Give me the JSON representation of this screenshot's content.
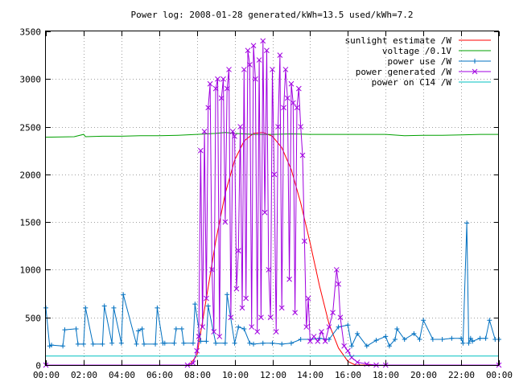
{
  "chart_data": {
    "type": "line",
    "title": "Power log: 2008-01-28 generated/kWh=13.5 used/kWh=7.2",
    "xlabel": "",
    "ylabel": "",
    "xlim": [
      0,
      24
    ],
    "ylim": [
      0,
      3500
    ],
    "grid": true,
    "legend_position": "top-right",
    "x_tick_values": [
      0,
      2,
      4,
      6,
      8,
      10,
      12,
      14,
      16,
      18,
      20,
      22,
      24
    ],
    "x_tick_labels": [
      "00:00",
      "02:00",
      "04:00",
      "06:00",
      "08:00",
      "10:00",
      "12:00",
      "14:00",
      "16:00",
      "18:00",
      "20:00",
      "22:00",
      "00:00"
    ],
    "y_tick_values": [
      0,
      500,
      1000,
      1500,
      2000,
      2500,
      3000,
      3500
    ],
    "y_tick_labels": [
      "0",
      "500",
      "1000",
      "1500",
      "2000",
      "2500",
      "3000",
      "3500"
    ],
    "series": [
      {
        "name": "sunlight estimate /W",
        "color": "#ff0000",
        "marker": "none",
        "x": [
          0,
          7.6,
          8.0,
          8.5,
          9.0,
          9.5,
          10.0,
          10.5,
          11.0,
          11.5,
          12.0,
          12.5,
          13.0,
          13.5,
          14.0,
          14.5,
          15.0,
          15.5,
          16.0,
          16.4,
          24
        ],
        "y": [
          0,
          0,
          100,
          700,
          1300,
          1800,
          2150,
          2350,
          2430,
          2440,
          2400,
          2280,
          2050,
          1700,
          1280,
          830,
          430,
          180,
          40,
          0,
          0
        ]
      },
      {
        "name": "voltage /0.1V",
        "color": "#00a000",
        "marker": "none",
        "x": [
          0,
          1.5,
          2.0,
          2.1,
          3.0,
          4.0,
          5.0,
          6.0,
          7.0,
          8.0,
          9.0,
          9.5,
          10.0,
          11.0,
          12.0,
          13.0,
          14.0,
          15.0,
          16.0,
          17.0,
          18.0,
          19.0,
          20.0,
          21.0,
          22.0,
          23.0,
          24.0
        ],
        "y": [
          2390,
          2395,
          2420,
          2395,
          2400,
          2400,
          2405,
          2405,
          2410,
          2420,
          2430,
          2440,
          2430,
          2420,
          2420,
          2425,
          2420,
          2420,
          2420,
          2420,
          2420,
          2405,
          2410,
          2410,
          2415,
          2420,
          2420
        ]
      },
      {
        "name": "power use /W",
        "color": "#0070c0",
        "marker": "plus",
        "x": [
          0,
          0.2,
          0.3,
          0.9,
          1.0,
          1.6,
          1.7,
          2.0,
          2.1,
          2.5,
          3.0,
          3.1,
          3.5,
          3.6,
          4.0,
          4.1,
          4.8,
          4.9,
          5.1,
          5.2,
          5.8,
          5.9,
          6.2,
          6.3,
          6.8,
          6.9,
          7.2,
          7.3,
          7.8,
          7.9,
          8.2,
          8.5,
          8.6,
          9.0,
          9.5,
          9.6,
          10.0,
          10.2,
          10.5,
          10.8,
          11.0,
          11.5,
          12.0,
          12.5,
          13.0,
          13.5,
          14.0,
          14.5,
          15.0,
          15.5,
          16.0,
          16.2,
          16.5,
          17.0,
          17.5,
          18.0,
          18.2,
          18.5,
          18.6,
          19.0,
          19.5,
          19.8,
          20.0,
          20.5,
          21.0,
          21.5,
          22.0,
          22.1,
          22.3,
          22.4,
          22.5,
          22.6,
          23.0,
          23.3,
          23.5,
          23.8,
          24.0
        ],
        "y": [
          600,
          200,
          210,
          200,
          370,
          380,
          220,
          220,
          600,
          220,
          220,
          620,
          230,
          600,
          230,
          740,
          220,
          360,
          380,
          220,
          220,
          600,
          230,
          230,
          230,
          380,
          380,
          230,
          230,
          640,
          250,
          250,
          620,
          230,
          230,
          740,
          230,
          400,
          380,
          230,
          220,
          230,
          230,
          220,
          230,
          270,
          270,
          280,
          270,
          400,
          420,
          200,
          330,
          200,
          260,
          300,
          200,
          270,
          380,
          270,
          330,
          270,
          470,
          270,
          270,
          280,
          280,
          230,
          1490,
          230,
          280,
          250,
          280,
          280,
          470,
          270,
          270
        ]
      },
      {
        "name": "power generated /W",
        "color": "#a000e0",
        "marker": "cross",
        "x": [
          0,
          7.5,
          7.8,
          8.0,
          8.1,
          8.2,
          8.3,
          8.4,
          8.5,
          8.6,
          8.7,
          8.8,
          8.9,
          9.0,
          9.1,
          9.2,
          9.3,
          9.4,
          9.5,
          9.6,
          9.7,
          9.8,
          9.9,
          10.0,
          10.1,
          10.2,
          10.3,
          10.4,
          10.5,
          10.6,
          10.7,
          10.8,
          10.9,
          11.0,
          11.1,
          11.2,
          11.3,
          11.4,
          11.5,
          11.6,
          11.7,
          11.8,
          11.9,
          12.0,
          12.1,
          12.2,
          12.3,
          12.4,
          12.5,
          12.6,
          12.7,
          12.8,
          12.9,
          13.0,
          13.1,
          13.2,
          13.3,
          13.4,
          13.5,
          13.6,
          13.7,
          13.8,
          13.9,
          14.0,
          14.2,
          14.4,
          14.6,
          14.8,
          15.0,
          15.2,
          15.4,
          15.5,
          15.6,
          15.8,
          16.0,
          16.2,
          16.5,
          17.0,
          17.5,
          18.0,
          24.0
        ],
        "y": [
          0,
          0,
          20,
          150,
          300,
          2250,
          400,
          2450,
          700,
          2700,
          2950,
          1000,
          350,
          2900,
          3000,
          300,
          2800,
          3000,
          1500,
          2900,
          3100,
          500,
          2450,
          2400,
          800,
          1200,
          2500,
          600,
          3100,
          700,
          3300,
          3150,
          400,
          3350,
          3000,
          350,
          3200,
          500,
          3400,
          1600,
          3300,
          1000,
          500,
          3100,
          2000,
          350,
          2500,
          3250,
          600,
          2700,
          3100,
          2800,
          900,
          2950,
          2750,
          550,
          2700,
          2900,
          2500,
          2200,
          1300,
          400,
          700,
          250,
          300,
          250,
          350,
          250,
          400,
          550,
          1000,
          850,
          500,
          200,
          150,
          80,
          30,
          10,
          0,
          0,
          0
        ]
      },
      {
        "name": "power on C14 /W",
        "color": "#00c0c0",
        "marker": "none",
        "x": [
          0,
          24
        ],
        "y": [
          95,
          95
        ]
      }
    ]
  }
}
